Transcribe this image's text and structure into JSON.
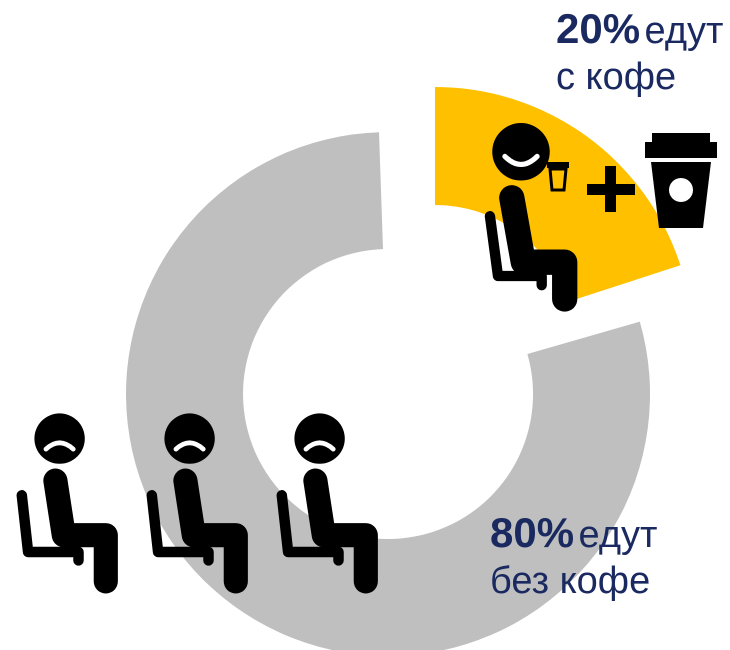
{
  "chart_data": {
    "type": "pie",
    "slices": [
      {
        "label": "с кофе",
        "value": 20,
        "percent_text": "20%",
        "line1": "едут",
        "line2": "с кофе",
        "color": "#FFC000"
      },
      {
        "label": "без кофе",
        "value": 80,
        "percent_text": "80%",
        "line1": "едут",
        "line2": "без кофе",
        "color": "#BFBFBF"
      }
    ]
  },
  "colors": {
    "text": "#1a2a60",
    "icon": "#000000",
    "coffee": "#FFC000",
    "no_coffee": "#BFBFBF"
  },
  "icons": [
    "happy-seated-person-icon",
    "small-coffee-cup-icon",
    "plus-icon",
    "coffee-cup-icon",
    "sad-seated-person-icon"
  ]
}
